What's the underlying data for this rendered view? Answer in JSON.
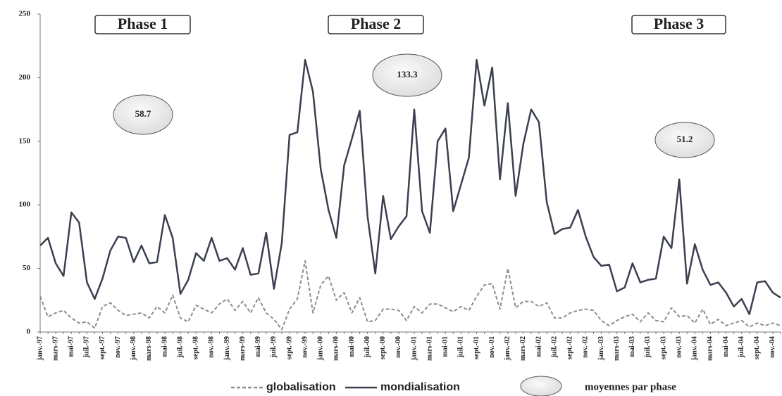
{
  "chart_data": {
    "type": "line",
    "categories": [
      "janv.-97",
      null,
      "mars-97",
      null,
      "mai-97",
      null,
      "juil.-97",
      null,
      "sept.-97",
      null,
      "nov.-97",
      null,
      "janv.-98",
      null,
      "mars-98",
      null,
      "mai-98",
      null,
      "juil.-98",
      null,
      "sept.-98",
      null,
      "nov.-98",
      null,
      "janv.-99",
      null,
      "mars-99",
      null,
      "mai-99",
      null,
      "juil.-99",
      null,
      "sept.-99",
      null,
      "nov.-99",
      null,
      "janv.-00",
      null,
      "mars-00",
      null,
      "mai-00",
      null,
      "juil.-00",
      null,
      "sept.-00",
      null,
      "nov.-00",
      null,
      "janv.-01",
      null,
      "mars-01",
      null,
      "mai-01",
      null,
      "juil.-01",
      null,
      "sept.-01",
      null,
      "nov.-01",
      null,
      "janv.-02",
      null,
      "mars-02",
      null,
      "mai-02",
      null,
      "juil.-02",
      null,
      "sept.-02",
      null,
      "nov.-02",
      null,
      "janv.-03",
      null,
      "mars-03",
      null,
      "mai-03",
      null,
      "juil.-03",
      null,
      "sept.-03",
      null,
      "nov.-03",
      null,
      "janv.-04",
      null,
      "mars-04",
      null,
      "mai-04",
      null,
      "juil.-04",
      null,
      "sept.-04",
      null,
      "nov.-04",
      null
    ],
    "series": [
      {
        "name": "globalisation",
        "color": "#8a8d99",
        "dashed": true,
        "values": [
          28,
          12,
          15,
          17,
          11,
          7,
          8,
          3,
          20,
          23,
          17,
          13,
          14,
          15,
          11,
          20,
          15,
          29,
          11,
          8,
          21,
          18,
          15,
          22,
          26,
          17,
          24,
          15,
          27,
          15,
          10,
          2,
          18,
          26,
          56,
          15,
          37,
          44,
          25,
          31,
          15,
          27,
          8,
          9,
          18,
          18,
          17,
          9,
          20,
          15,
          22,
          22,
          19,
          16,
          20,
          17,
          28,
          37,
          38,
          18,
          50,
          19,
          24,
          24,
          20,
          23,
          11,
          11,
          15,
          17,
          18,
          17,
          9,
          5,
          9,
          12,
          14,
          8,
          15,
          9,
          8,
          19,
          12,
          13,
          7,
          18,
          6,
          10,
          5,
          7,
          9,
          4,
          7,
          5,
          7,
          5
        ]
      },
      {
        "name": "mondialisation",
        "color": "#3b4050",
        "dashed": false,
        "values": [
          68,
          74,
          54,
          44,
          94,
          86,
          39,
          26,
          42,
          64,
          75,
          74,
          55,
          68,
          54,
          55,
          92,
          74,
          30,
          41,
          62,
          56,
          74,
          56,
          58,
          49,
          66,
          45,
          46,
          78,
          34,
          70,
          155,
          157,
          214,
          189,
          128,
          96,
          74,
          131,
          152,
          174,
          91,
          46,
          107,
          73,
          83,
          91,
          175,
          95,
          78,
          150,
          160,
          95,
          116,
          137,
          214,
          178,
          208,
          120,
          180,
          107,
          148,
          175,
          165,
          102,
          77,
          81,
          82,
          96,
          75,
          59,
          52,
          53,
          32,
          35,
          54,
          39,
          41,
          42,
          75,
          66,
          120,
          38,
          69,
          49,
          37,
          39,
          31,
          20,
          26,
          14,
          39,
          40,
          31,
          27
        ]
      }
    ],
    "phases": [
      "Phase 1",
      "Phase 2",
      "Phase 3"
    ],
    "phase_means": [
      "58.7",
      "133.3",
      "51.2"
    ],
    "phase_means_legend": "moyennes par phase",
    "ylim": [
      0,
      250
    ],
    "yticks": [
      0,
      50,
      100,
      150,
      200,
      250
    ],
    "grid": false
  }
}
